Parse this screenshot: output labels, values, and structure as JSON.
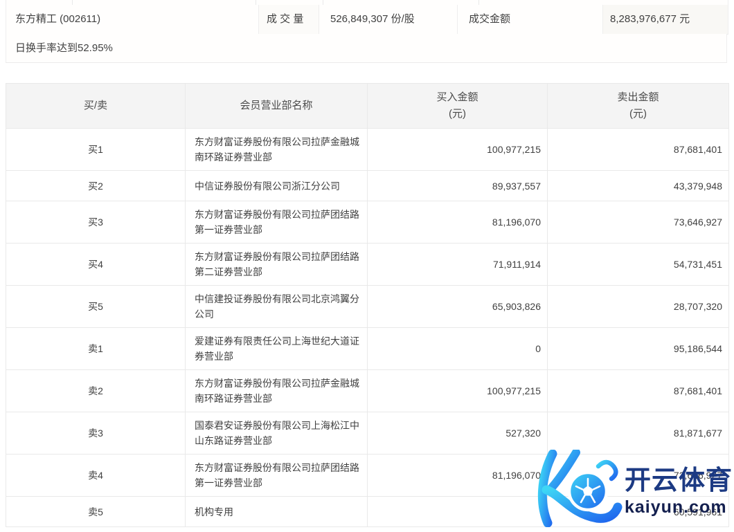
{
  "info_bar": {
    "stock_title": "东方精工 (002611)",
    "volume_label": "成 交 量",
    "volume_value": "526,849,307 份/股",
    "amount_label": "成交金额",
    "amount_value": "8,283,976,677 元"
  },
  "notice": {
    "text": "日换手率达到52.95%"
  },
  "table": {
    "columns": [
      {
        "label": "买/卖"
      },
      {
        "label": "会员营业部名称"
      },
      {
        "label": "买入金额",
        "unit": "(元)"
      },
      {
        "label": "卖出金额",
        "unit": "(元)"
      }
    ],
    "rows": [
      {
        "side": "买1",
        "name": "东方财富证券股份有限公司拉萨金融城南环路证券营业部",
        "buy": "100,977,215",
        "sell": "87,681,401"
      },
      {
        "side": "买2",
        "name": "中信证券股份有限公司浙江分公司",
        "buy": "89,937,557",
        "sell": "43,379,948"
      },
      {
        "side": "买3",
        "name": "东方财富证券股份有限公司拉萨团结路第一证券营业部",
        "buy": "81,196,070",
        "sell": "73,646,927"
      },
      {
        "side": "买4",
        "name": "东方财富证券股份有限公司拉萨团结路第二证券营业部",
        "buy": "71,911,914",
        "sell": "54,731,451"
      },
      {
        "side": "买5",
        "name": "中信建投证券股份有限公司北京鸿翼分公司",
        "buy": "65,903,826",
        "sell": "28,707,320"
      },
      {
        "side": "卖1",
        "name": "爱建证券有限责任公司上海世纪大道证券营业部",
        "buy": "0",
        "sell": "95,186,544"
      },
      {
        "side": "卖2",
        "name": "东方财富证券股份有限公司拉萨金融城南环路证券营业部",
        "buy": "100,977,215",
        "sell": "87,681,401"
      },
      {
        "side": "卖3",
        "name": "国泰君安证券股份有限公司上海松江中山东路证券营业部",
        "buy": "527,320",
        "sell": "81,871,677"
      },
      {
        "side": "卖4",
        "name": "东方财富证券股份有限公司拉萨团结路第一证券营业部",
        "buy": "81,196,070",
        "sell": "73,646,927"
      },
      {
        "side": "卖5",
        "name": "机构专用",
        "buy": "",
        "sell": "60,591,961"
      }
    ]
  },
  "watermark": {
    "brand": "开云体育",
    "domain": "kaiyun.com",
    "colors": {
      "gradient_start": "#3ed6f5",
      "gradient_end": "#1f66ee",
      "brand_navy": "#1c3a83",
      "domain_navy": "#14204f"
    }
  }
}
